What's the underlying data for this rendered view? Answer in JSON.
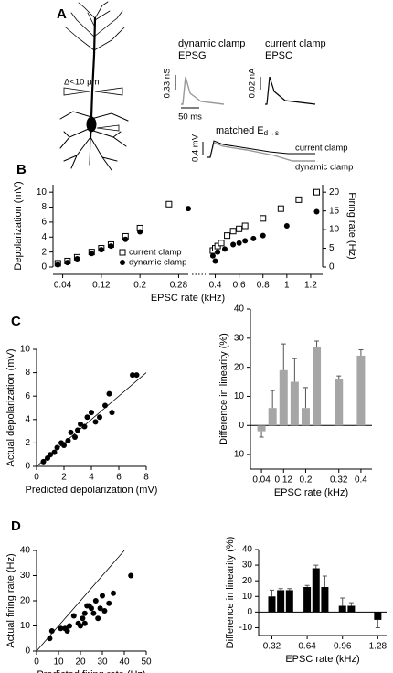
{
  "panel_a": {
    "panel": "A",
    "dynamic_clamp": "dynamic clamp",
    "epsg": "EPSG",
    "current_clamp": "current clamp",
    "epsc": "EPSC",
    "scale_g": "0.33 nS",
    "scale_t": "50 ms",
    "scale_i": "0.02 nA",
    "matched": "matched E",
    "matched_sub": "d→s",
    "scale_v": "0.4 mV",
    "trace_current": "current clamp",
    "trace_dynamic": "dynamic clamp",
    "distance": "Δ<10 μm"
  },
  "chart_data": [
    {
      "panel": "B",
      "type": "scatter",
      "xlabel": "EPSC rate (kHz)",
      "ylabel": "Depolarization (mV)",
      "y2label": "Firing rate (Hz)",
      "xlim": [
        0.02,
        1.3
      ],
      "xbreak": [
        0.3,
        0.35
      ],
      "xticks": [
        0.04,
        0.12,
        0.2,
        0.28,
        0.4,
        0.6,
        0.8,
        1,
        1.2
      ],
      "ylim": [
        0,
        11
      ],
      "yticks": [
        0,
        2,
        4,
        6,
        8,
        10
      ],
      "y2lim": [
        0,
        22
      ],
      "y2ticks": [
        0,
        5,
        10,
        15,
        20
      ],
      "legend": "lower center",
      "series": [
        {
          "name": "current clamp",
          "marker": "square-open",
          "color": "#000000",
          "x": [
            0.03,
            0.05,
            0.07,
            0.1,
            0.12,
            0.14,
            0.17,
            0.2,
            0.26,
            0.38,
            0.4,
            0.42,
            0.45,
            0.5,
            0.55,
            0.6,
            0.65,
            0.8,
            0.95,
            1.1,
            1.25
          ],
          "values": [
            0.5,
            0.8,
            1.3,
            2,
            2.5,
            3,
            4.1,
            5.2,
            8.4,
            2.2,
            2.5,
            2.8,
            3.2,
            4.2,
            4.8,
            5.1,
            5.5,
            6.5,
            7.8,
            9,
            10
          ]
        },
        {
          "name": "dynamic clamp",
          "marker": "circle",
          "color": "#000000",
          "x": [
            0.03,
            0.05,
            0.07,
            0.1,
            0.12,
            0.14,
            0.17,
            0.2,
            0.3,
            0.38,
            0.4,
            0.42,
            0.48,
            0.55,
            0.6,
            0.65,
            0.72,
            0.8,
            1,
            1.25
          ],
          "values": [
            0.3,
            0.6,
            1.1,
            1.8,
            2.3,
            2.8,
            3.7,
            4.7,
            7.8,
            1.5,
            0.8,
            2,
            2.4,
            3,
            3.2,
            3.5,
            3.8,
            4.2,
            5.5,
            7.4
          ]
        }
      ]
    },
    {
      "panel": "C",
      "type": "scatter",
      "xlabel": "Predicted depolarization (mV)",
      "ylabel": "Actual depolarization (mV)",
      "xlim": [
        0,
        8
      ],
      "xticks": [
        0,
        2,
        4,
        6,
        8
      ],
      "ylim": [
        0,
        10
      ],
      "yticks": [
        0,
        2,
        4,
        6,
        8,
        10
      ],
      "identity_line": true,
      "series": [
        {
          "marker": "circle",
          "color": "#000000",
          "x": [
            0.5,
            0.8,
            1,
            1.3,
            1.5,
            1.8,
            2,
            2.3,
            2.5,
            2.8,
            3,
            3.2,
            3.5,
            3.7,
            4,
            4.3,
            4.6,
            5,
            5.3,
            5.5,
            7,
            7.3
          ],
          "values": [
            0.4,
            0.7,
            1,
            1.2,
            1.6,
            2,
            1.8,
            2.2,
            2.9,
            2.5,
            3.1,
            3.6,
            3.4,
            4.2,
            4.6,
            3.8,
            4.2,
            5.2,
            6.2,
            4.6,
            7.8,
            7.8
          ]
        }
      ]
    },
    {
      "type": "bar",
      "xlabel": "EPSC rate (kHz)",
      "ylabel": "Difference in linearity (%)",
      "color": "#a6a6a6",
      "xlim": [
        0,
        0.44
      ],
      "xticks": [
        0.04,
        0.12,
        0.2,
        0.32,
        0.4
      ],
      "ylim": [
        -15,
        40
      ],
      "yticks": [
        -10,
        0,
        10,
        20,
        30,
        40
      ],
      "x": [
        0.04,
        0.08,
        0.12,
        0.16,
        0.2,
        0.24,
        0.32,
        0.4
      ],
      "values": [
        -2,
        6,
        19,
        15,
        6,
        27,
        16,
        24
      ],
      "errors": [
        2,
        6,
        9,
        8,
        7,
        2,
        1,
        2
      ]
    },
    {
      "panel": "D",
      "type": "scatter",
      "xlabel": "Predicted firing rate (Hz)",
      "ylabel": "Actual firing rate (Hz)",
      "xlim": [
        0,
        50
      ],
      "xticks": [
        0,
        10,
        20,
        30,
        40,
        50
      ],
      "ylim": [
        0,
        40
      ],
      "yticks": [
        0,
        10,
        20,
        30,
        40
      ],
      "identity_line": true,
      "series": [
        {
          "marker": "circle",
          "color": "#000000",
          "x": [
            6,
            7,
            11,
            13,
            14,
            15,
            17,
            19,
            20,
            21,
            22,
            22,
            23,
            24,
            25,
            26,
            27,
            28,
            29,
            30,
            31,
            33,
            35,
            43
          ],
          "values": [
            5,
            8,
            9,
            9,
            8,
            10,
            14,
            11,
            10,
            13,
            15,
            11,
            18,
            18,
            17,
            15,
            20,
            13,
            17,
            22,
            16,
            19,
            23,
            30
          ]
        }
      ]
    },
    {
      "type": "bar",
      "xlabel": "EPSC rate (kHz)",
      "ylabel": "Difference in linearity (%)",
      "color": "#000000",
      "xlim": [
        0.2,
        1.36
      ],
      "xticks": [
        0.32,
        0.64,
        0.96,
        1.28
      ],
      "ylim": [
        -15,
        40
      ],
      "yticks": [
        -10,
        0,
        10,
        20,
        30,
        40
      ],
      "x": [
        0.32,
        0.4,
        0.48,
        0.64,
        0.72,
        0.8,
        0.96,
        1.04,
        1.28
      ],
      "values": [
        10,
        14,
        14,
        16,
        28,
        16,
        4,
        4,
        -5
      ],
      "errors": [
        4,
        1,
        1,
        1,
        2,
        7,
        5,
        2,
        5
      ]
    }
  ]
}
